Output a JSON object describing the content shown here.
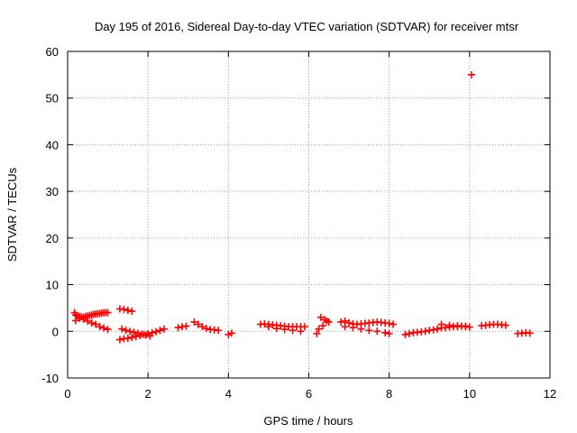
{
  "chart_data": {
    "type": "scatter",
    "title": "Day 195 of 2016, Sidereal Day-to-day VTEC variation (SDTVAR) for receiver mtsr",
    "xlabel": "GPS time / hours",
    "ylabel": "SDTVAR / TECUs",
    "xlim": [
      0,
      12
    ],
    "ylim": [
      -10,
      60
    ],
    "xticks": [
      0,
      2,
      4,
      6,
      8,
      10,
      12
    ],
    "yticks": [
      -10,
      0,
      10,
      20,
      30,
      40,
      50,
      60
    ],
    "grid": true,
    "marker": "+",
    "series": [
      {
        "name": "SDTVAR",
        "color": "#ff0000",
        "x": [
          0.17,
          0.2,
          0.25,
          0.3,
          0.35,
          0.4,
          0.45,
          0.5,
          0.55,
          0.6,
          0.65,
          0.7,
          0.75,
          0.8,
          0.85,
          0.9,
          0.95,
          1.0,
          0.2,
          0.3,
          0.4,
          0.5,
          0.6,
          0.7,
          0.8,
          0.9,
          1.0,
          1.3,
          1.4,
          1.5,
          1.6,
          1.3,
          1.4,
          1.5,
          1.6,
          1.7,
          1.8,
          1.9,
          2.0,
          2.1,
          2.2,
          2.3,
          2.4,
          1.35,
          1.45,
          1.55,
          1.65,
          1.75,
          1.85,
          1.95,
          2.05,
          2.75,
          2.85,
          2.95,
          3.15,
          3.25,
          3.35,
          3.45,
          3.55,
          3.65,
          3.75,
          4.0,
          4.08,
          4.8,
          4.9,
          5.0,
          5.1,
          5.2,
          5.3,
          5.4,
          5.5,
          5.6,
          5.7,
          5.8,
          5.9,
          5.0,
          5.2,
          5.4,
          5.6,
          5.8,
          6.2,
          6.3,
          6.4,
          6.5,
          6.25,
          6.35,
          6.45,
          6.8,
          6.9,
          7.0,
          7.1,
          7.2,
          7.3,
          7.4,
          7.5,
          7.6,
          7.7,
          7.8,
          7.9,
          8.0,
          8.1,
          6.9,
          7.1,
          7.3,
          7.5,
          7.7,
          7.9,
          8.0,
          8.4,
          8.5,
          8.6,
          8.7,
          8.8,
          8.9,
          9.0,
          9.1,
          9.2,
          9.3,
          9.4,
          9.5,
          9.6,
          9.7,
          9.8,
          9.9,
          10.0,
          9.3,
          9.5,
          9.7,
          9.9,
          10.05,
          10.3,
          10.4,
          10.5,
          10.6,
          10.7,
          10.8,
          10.9,
          11.2,
          11.3,
          11.4,
          11.5
        ],
        "y": [
          4.0,
          3.5,
          3.3,
          3.2,
          3.1,
          3.0,
          3.2,
          3.3,
          3.4,
          3.5,
          3.6,
          3.7,
          3.8,
          3.8,
          3.9,
          4.0,
          4.0,
          4.0,
          2.3,
          2.8,
          2.6,
          2.2,
          1.8,
          1.5,
          1.0,
          0.7,
          0.4,
          4.8,
          4.7,
          4.5,
          4.3,
          -1.8,
          -1.6,
          -1.5,
          -1.3,
          -1.1,
          -0.9,
          -0.7,
          -0.5,
          -0.3,
          -0.1,
          0.2,
          0.5,
          0.5,
          0.2,
          0.0,
          -0.2,
          -0.4,
          -0.6,
          -0.8,
          -1.0,
          0.8,
          1.0,
          1.1,
          2.0,
          1.5,
          1.0,
          0.6,
          0.4,
          0.3,
          0.2,
          -0.7,
          -0.4,
          1.5,
          1.6,
          1.5,
          1.4,
          1.3,
          1.2,
          1.1,
          1.0,
          1.0,
          1.0,
          1.0,
          1.0,
          1.0,
          0.6,
          0.4,
          0.2,
          0.0,
          -0.5,
          3.0,
          2.5,
          2.0,
          0.5,
          1.2,
          2.2,
          2.0,
          2.2,
          1.8,
          1.6,
          1.5,
          1.6,
          1.7,
          1.8,
          1.9,
          2.0,
          1.9,
          1.8,
          1.7,
          1.5,
          1.0,
          0.8,
          0.5,
          0.2,
          0.0,
          -0.3,
          -0.5,
          -0.7,
          -0.5,
          -0.3,
          -0.2,
          -0.1,
          0.0,
          0.2,
          0.3,
          0.5,
          0.7,
          0.8,
          0.9,
          1.0,
          1.0,
          1.1,
          1.0,
          0.9,
          1.5,
          1.3,
          1.2,
          1.1,
          55.0,
          1.2,
          1.3,
          1.4,
          1.5,
          1.5,
          1.4,
          1.3,
          -0.5,
          -0.4,
          -0.3,
          -0.4
        ]
      }
    ]
  }
}
